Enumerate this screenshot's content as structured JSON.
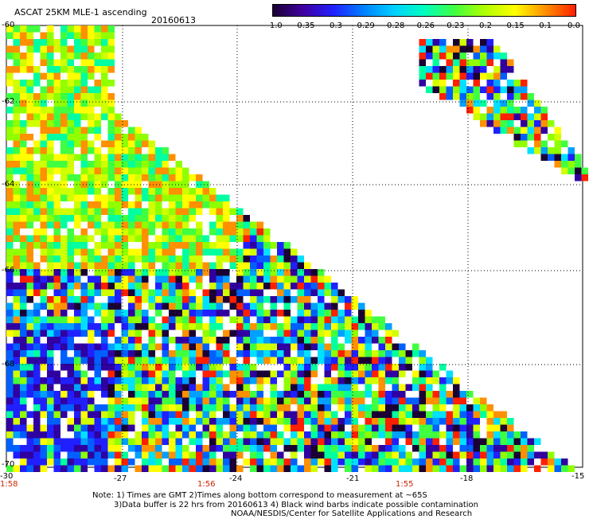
{
  "header": {
    "title": "ASCAT 25KM MLE-1 ascending",
    "date": "20160613"
  },
  "colorbar": {
    "labels": [
      "-1.0",
      "-0.35",
      "-0.3",
      "-0.29",
      "-0.28",
      "-0.26",
      "-0.23",
      "-0.2",
      "-0.15",
      "-0.1",
      "0.0"
    ],
    "colors": [
      "#1a0033",
      "#4000a0",
      "#2020ff",
      "#0080ff",
      "#00d0ff",
      "#00ffc0",
      "#40ff40",
      "#b0ff00",
      "#ffff00",
      "#ff9000",
      "#ff2000"
    ]
  },
  "axes": {
    "lat_labels": [
      "-60",
      "-62",
      "-64",
      "-66",
      "-68",
      "-70"
    ],
    "lon_labels": [
      "-30",
      "-27",
      "-24",
      "-21",
      "-18",
      "-15"
    ],
    "time_labels": [
      "1:58",
      "1:56",
      "1:55"
    ],
    "time_color": "#cc2200"
  },
  "notes": {
    "line1": "Note: 1) Times are GMT 2)Times along bottom correspond to measurement at ~65S",
    "line2": "3)Data buffer is 22 hrs from 20160613 4) Black wind barbs indicate possible contamination",
    "line3": "NOAA/NESDIS/Center for Satellite Applications and Research"
  }
}
